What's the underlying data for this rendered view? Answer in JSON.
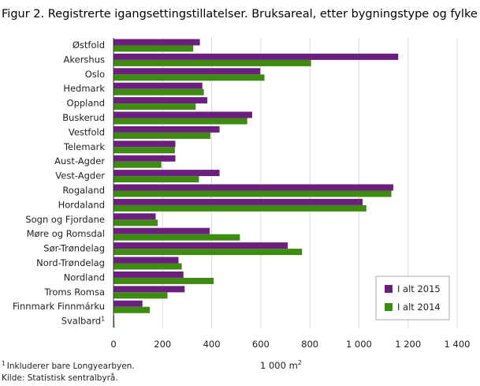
{
  "chart_data": {
    "type": "bar",
    "orientation": "horizontal",
    "title": "Figur 2. Registrerte igangsettingstillatelser. Bruksareal, etter bygningstype og fylke",
    "categories": [
      "Østfold",
      "Akershus",
      "Oslo",
      "Hedmark",
      "Oppland",
      "Buskerud",
      "Vestfold",
      "Telemark",
      "Aust-Agder",
      "Vest-Agder",
      "Rogaland",
      "Hordaland",
      "Sogn og Fjordane",
      "Møre og Romsdal",
      "Sør-Trøndelag",
      "Nord-Trøndelag",
      "Nordland",
      "Troms Romsa",
      "Finnmark Finnmárku",
      "Svalbard"
    ],
    "category_footnote": {
      "Svalbard": "1"
    },
    "series": [
      {
        "name": "I alt 2015",
        "color": "#6c1f7f",
        "values": [
          352,
          1160,
          598,
          362,
          382,
          565,
          432,
          252,
          252,
          432,
          1140,
          1015,
          172,
          392,
          710,
          265,
          285,
          290,
          118,
          3
        ]
      },
      {
        "name": "I alt 2014",
        "color": "#3d8b0f",
        "values": [
          325,
          805,
          615,
          368,
          335,
          545,
          395,
          250,
          195,
          348,
          1132,
          1030,
          180,
          515,
          768,
          278,
          408,
          220,
          148,
          4
        ]
      }
    ],
    "xlim": [
      0,
      1400
    ],
    "xticks": [
      0,
      200,
      400,
      600,
      800,
      1000,
      1200,
      1400
    ],
    "xtick_labels": [
      "0",
      "200",
      "400",
      "600",
      "800",
      "1 000",
      "1 200",
      "1 400"
    ],
    "xlabel": "1 000 m",
    "xlabel_superscript": "2",
    "grid": true,
    "legend_position": "bottom-right"
  },
  "footnotes": [
    "Inkluderer bare Longyearbyen.",
    "Kilde: Statistisk sentralbyrå."
  ],
  "footnote_marker": "1"
}
